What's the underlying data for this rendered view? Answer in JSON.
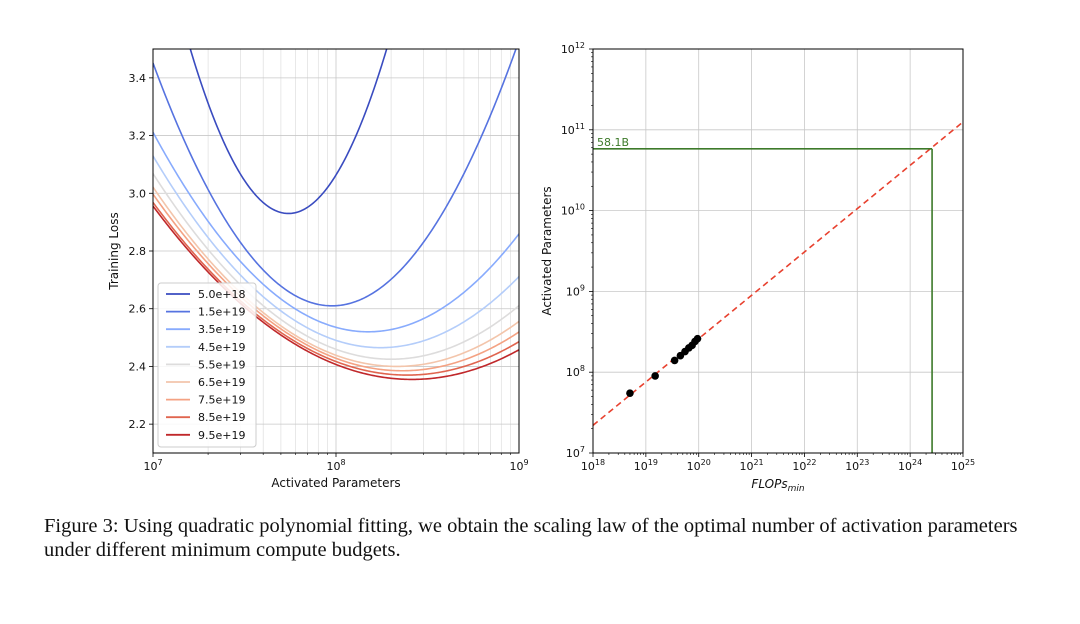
{
  "chart_data": [
    {
      "type": "line",
      "xlabel": "Activated Parameters",
      "ylabel": "Training Loss",
      "x_scale": "log",
      "xlim": [
        10000000,
        1000000000
      ],
      "ylim": [
        2.1,
        3.5
      ],
      "x_tick_labels": [
        {
          "value": 10000000,
          "base": "10",
          "exp": "7"
        },
        {
          "value": 100000000,
          "base": "10",
          "exp": "8"
        },
        {
          "value": 1000000000,
          "base": "10",
          "exp": "9"
        }
      ],
      "y_ticks": [
        2.2,
        2.4,
        2.6,
        2.8,
        3.0,
        3.2,
        3.4
      ],
      "y_tick_labels": [
        "2.2",
        "2.4",
        "2.6",
        "2.8",
        "3.0",
        "3.2",
        "3.4"
      ],
      "grid": true,
      "legend_position": "lower-left",
      "series": [
        {
          "name": "5.0e+18",
          "color": "#3a4cc0",
          "min_x": 55000000,
          "min_y": 2.93,
          "curvature": 1.98
        },
        {
          "name": "1.5e+19",
          "color": "#5673e0",
          "min_x": 95000000,
          "min_y": 2.61,
          "curvature": 0.88
        },
        {
          "name": "3.5e+19",
          "color": "#88abfd",
          "min_x": 150000000,
          "min_y": 2.52,
          "curvature": 0.5
        },
        {
          "name": "4.5e+19",
          "color": "#b4cdfa",
          "min_x": 175000000,
          "min_y": 2.465,
          "curvature": 0.43
        },
        {
          "name": "5.5e+19",
          "color": "#dddcdc",
          "min_x": 200000000,
          "min_y": 2.425,
          "curvature": 0.38
        },
        {
          "name": "6.5e+19",
          "color": "#f3c5ab",
          "min_x": 215000000,
          "min_y": 2.4,
          "curvature": 0.35
        },
        {
          "name": "7.5e+19",
          "color": "#f4a283",
          "min_x": 230000000,
          "min_y": 2.385,
          "curvature": 0.33
        },
        {
          "name": "8.5e+19",
          "color": "#e0654f",
          "min_x": 245000000,
          "min_y": 2.37,
          "curvature": 0.31
        },
        {
          "name": "9.5e+19",
          "color": "#c0282b",
          "min_x": 260000000,
          "min_y": 2.355,
          "curvature": 0.3
        }
      ]
    },
    {
      "type": "scatter",
      "xlabel_main": "FLOPs",
      "xlabel_sub": "min",
      "ylabel": "Activated Parameters",
      "x_scale": "log",
      "y_scale": "log",
      "xlim": [
        1e+18,
        1e+25
      ],
      "ylim": [
        10000000.0,
        1000000000000.0
      ],
      "x_tick_labels": [
        {
          "value": 1e+18,
          "base": "10",
          "exp": "18"
        },
        {
          "value": 1e+19,
          "base": "10",
          "exp": "19"
        },
        {
          "value": 1e+20,
          "base": "10",
          "exp": "20"
        },
        {
          "value": 1e+21,
          "base": "10",
          "exp": "21"
        },
        {
          "value": 1e+22,
          "base": "10",
          "exp": "22"
        },
        {
          "value": 1e+23,
          "base": "10",
          "exp": "23"
        },
        {
          "value": 1e+24,
          "base": "10",
          "exp": "24"
        },
        {
          "value": 1e+25,
          "base": "10",
          "exp": "25"
        }
      ],
      "y_tick_labels": [
        {
          "value": 10000000.0,
          "base": "10",
          "exp": "7"
        },
        {
          "value": 100000000.0,
          "base": "10",
          "exp": "8"
        },
        {
          "value": 1000000000.0,
          "base": "10",
          "exp": "9"
        },
        {
          "value": 10000000000.0,
          "base": "10",
          "exp": "10"
        },
        {
          "value": 100000000000.0,
          "base": "10",
          "exp": "11"
        },
        {
          "value": 1000000000000.0,
          "base": "10",
          "exp": "12"
        }
      ],
      "grid": true,
      "points": [
        {
          "x": 5e+18,
          "y": 55000000
        },
        {
          "x": 1.5e+19,
          "y": 90000000
        },
        {
          "x": 3.5e+19,
          "y": 140000000
        },
        {
          "x": 4.5e+19,
          "y": 160000000
        },
        {
          "x": 5.5e+19,
          "y": 180000000
        },
        {
          "x": 6.5e+19,
          "y": 200000000
        },
        {
          "x": 7.5e+19,
          "y": 215000000
        },
        {
          "x": 8.5e+19,
          "y": 240000000
        },
        {
          "x": 9.5e+19,
          "y": 260000000
        }
      ],
      "fit_line": {
        "color": "#e8412f",
        "x_start": 1e+18,
        "y_start": 22000000,
        "x_end": 1e+25,
        "y_end": 125000000000
      },
      "marker": {
        "label": "58.1B",
        "x": 2.6e+24,
        "y": 58100000000,
        "color": "#3d7a2a"
      }
    }
  ],
  "caption": "Figure 3: Using quadratic polynomial fitting, we obtain the scaling law of the optimal number of activation parameters under different minimum compute budgets."
}
